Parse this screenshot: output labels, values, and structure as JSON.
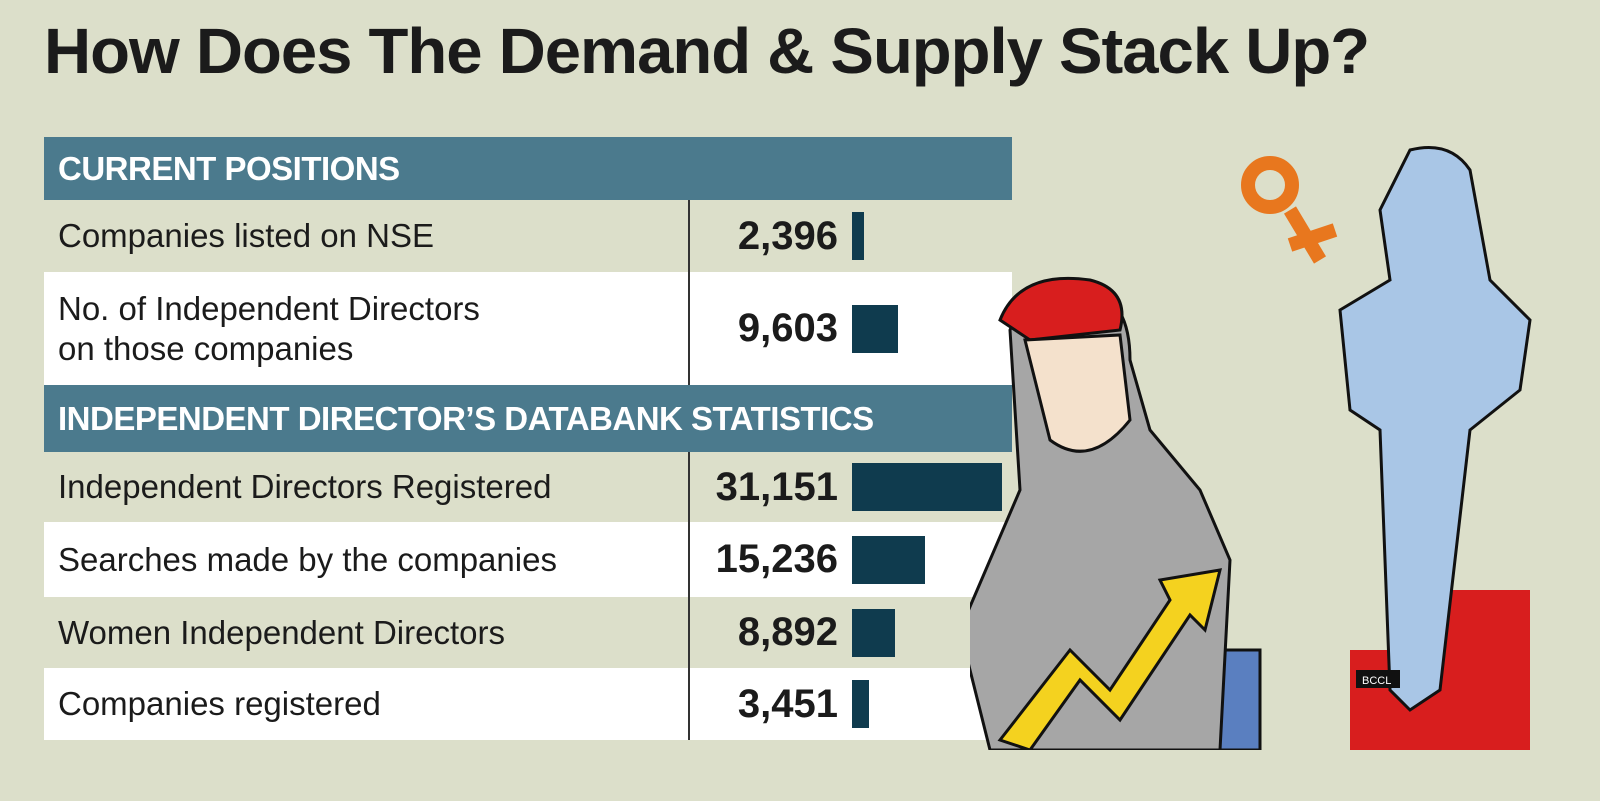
{
  "title": "How Does The Demand & Supply Stack Up?",
  "credit": "BCCL",
  "colors": {
    "header": "#4b7a8d",
    "bar": "#0f3b4e",
    "background": "#dcdfca"
  },
  "chart_data": {
    "type": "table",
    "title": "How Does The Demand & Supply Stack Up?",
    "sections": [
      {
        "heading": "CURRENT POSITIONS",
        "rows": [
          {
            "label": "Companies listed on NSE",
            "value": 2396,
            "display": "2,396"
          },
          {
            "label": "No. of Independent Directors on those companies",
            "label_lines": [
              "No. of Independent Directors",
              "on those companies"
            ],
            "value": 9603,
            "display": "9,603"
          }
        ]
      },
      {
        "heading": "INDEPENDENT DIRECTOR’S DATABANK STATISTICS",
        "rows": [
          {
            "label": "Independent Directors Registered",
            "value": 31151,
            "display": "31,151"
          },
          {
            "label": "Searches made by the companies",
            "value": 15236,
            "display": "15,236"
          },
          {
            "label": "Women Independent Directors",
            "value": 8892,
            "display": "8,892"
          },
          {
            "label": "Companies registered",
            "value": 3451,
            "display": "3,451"
          }
        ]
      }
    ]
  }
}
